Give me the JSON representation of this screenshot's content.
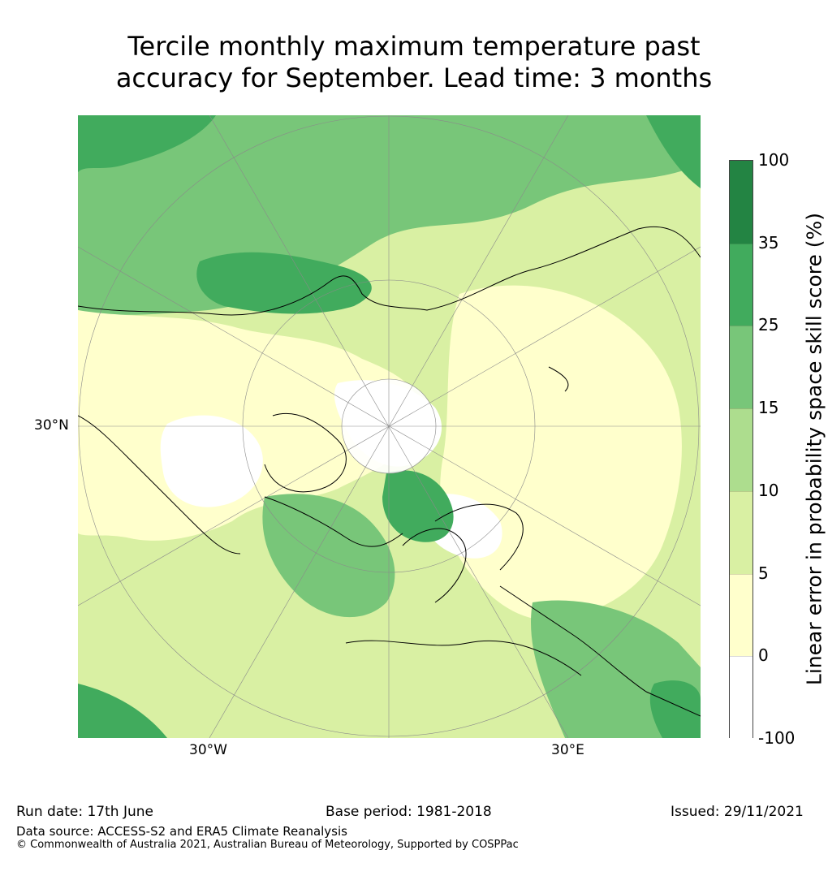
{
  "title_line1": "Tercile monthly maximum temperature past",
  "title_line2": "accuracy for September. Lead time: 3 months",
  "map": {
    "projection": "north polar stereographic",
    "lat_label": "30°N",
    "lon_label_west": "30°W",
    "lon_label_east": "30°E"
  },
  "colorbar": {
    "label": "Linear error in probability space skill score (%)",
    "ticks": [
      "100",
      "35",
      "25",
      "15",
      "10",
      "5",
      "0",
      "-100"
    ],
    "bins": [
      {
        "range": "35 to 100",
        "color": "#238443"
      },
      {
        "range": "25 to 35",
        "color": "#41ab5d"
      },
      {
        "range": "15 to 25",
        "color": "#78c679"
      },
      {
        "range": "10 to 15",
        "color": "#addd8e"
      },
      {
        "range": "5 to 10",
        "color": "#d9f0a3"
      },
      {
        "range": "0 to 5",
        "color": "#ffffcc"
      },
      {
        "range": "-100 to 0",
        "color": "#ffffff"
      }
    ]
  },
  "footer": {
    "run_date": "Run date: 17th June",
    "base_period": "Base period: 1981-2018",
    "issued": "Issued: 29/11/2021",
    "data_source": "Data source: ACCESS-S2 and ERA5 Climate Reanalysis",
    "copyright": "© Commonwealth of Australia 2021, Australian Bureau of Meteorology, Supported by COSPPac"
  }
}
